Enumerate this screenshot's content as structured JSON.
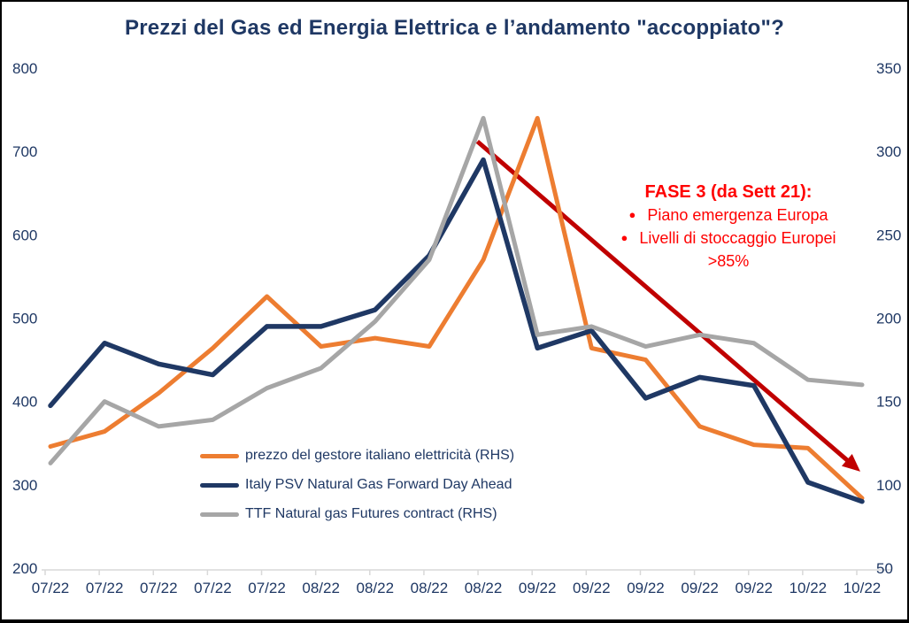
{
  "title": "Prezzi del Gas ed Energia Elettrica e l’andamento \"accoppiato\"?",
  "chart_data": {
    "type": "line",
    "title": "Prezzi del Gas ed Energia Elettrica e l’andamento \"accoppiato\"?",
    "x_labels": [
      "07/22",
      "07/22",
      "07/22",
      "07/22",
      "07/22",
      "08/22",
      "08/22",
      "08/22",
      "08/22",
      "09/22",
      "09/22",
      "09/22",
      "09/22",
      "09/22",
      "10/22",
      "10/22"
    ],
    "series": [
      {
        "name": "prezzo del gestore italiano elettricità (RHS)",
        "axis": "right",
        "color": "#ED7D31",
        "values": [
          123,
          132,
          155,
          182,
          213,
          183,
          188,
          183,
          235,
          320,
          182,
          175,
          135,
          124,
          122,
          92
        ]
      },
      {
        "name": "Italy PSV Natural Gas Forward Day Ahead",
        "axis": "left",
        "color": "#1F3864",
        "values": [
          395,
          470,
          445,
          432,
          490,
          490,
          510,
          575,
          690,
          464,
          485,
          404,
          429,
          419,
          303,
          280
        ]
      },
      {
        "name": "TTF Natural gas Futures contract (RHS)",
        "axis": "right",
        "color": "#A6A6A6",
        "values": [
          113,
          150,
          135,
          139,
          158,
          170,
          198,
          235,
          320,
          190,
          195,
          183,
          190,
          185,
          163,
          160
        ]
      }
    ],
    "left_axis": {
      "min": 200,
      "max": 800,
      "ticks": [
        800,
        700,
        600,
        500,
        400,
        300,
        200
      ]
    },
    "right_axis": {
      "min": 50,
      "max": 350,
      "ticks": [
        350,
        300,
        250,
        200,
        150,
        100,
        50
      ]
    },
    "grid": false,
    "legend_position": "inside-bottom-left",
    "annotation_arrow": {
      "color": "#C00000",
      "from": {
        "x_index": 7.89,
        "left_value": 712
      },
      "to": {
        "x_index": 14.93,
        "left_value": 318
      }
    }
  },
  "callout": {
    "color": "#FF0000",
    "heading": "FASE 3 (da Sett 21):",
    "lines": [
      {
        "bullet": "●",
        "text": "Piano emergenza Europa"
      },
      {
        "bullet": "●",
        "text": "Livelli di stoccaggio Europei"
      },
      {
        "bullet": "",
        "text": ">85%"
      }
    ]
  },
  "style": {
    "text_color": "#1F3864",
    "axis_line_color": "#D9D9D9"
  }
}
